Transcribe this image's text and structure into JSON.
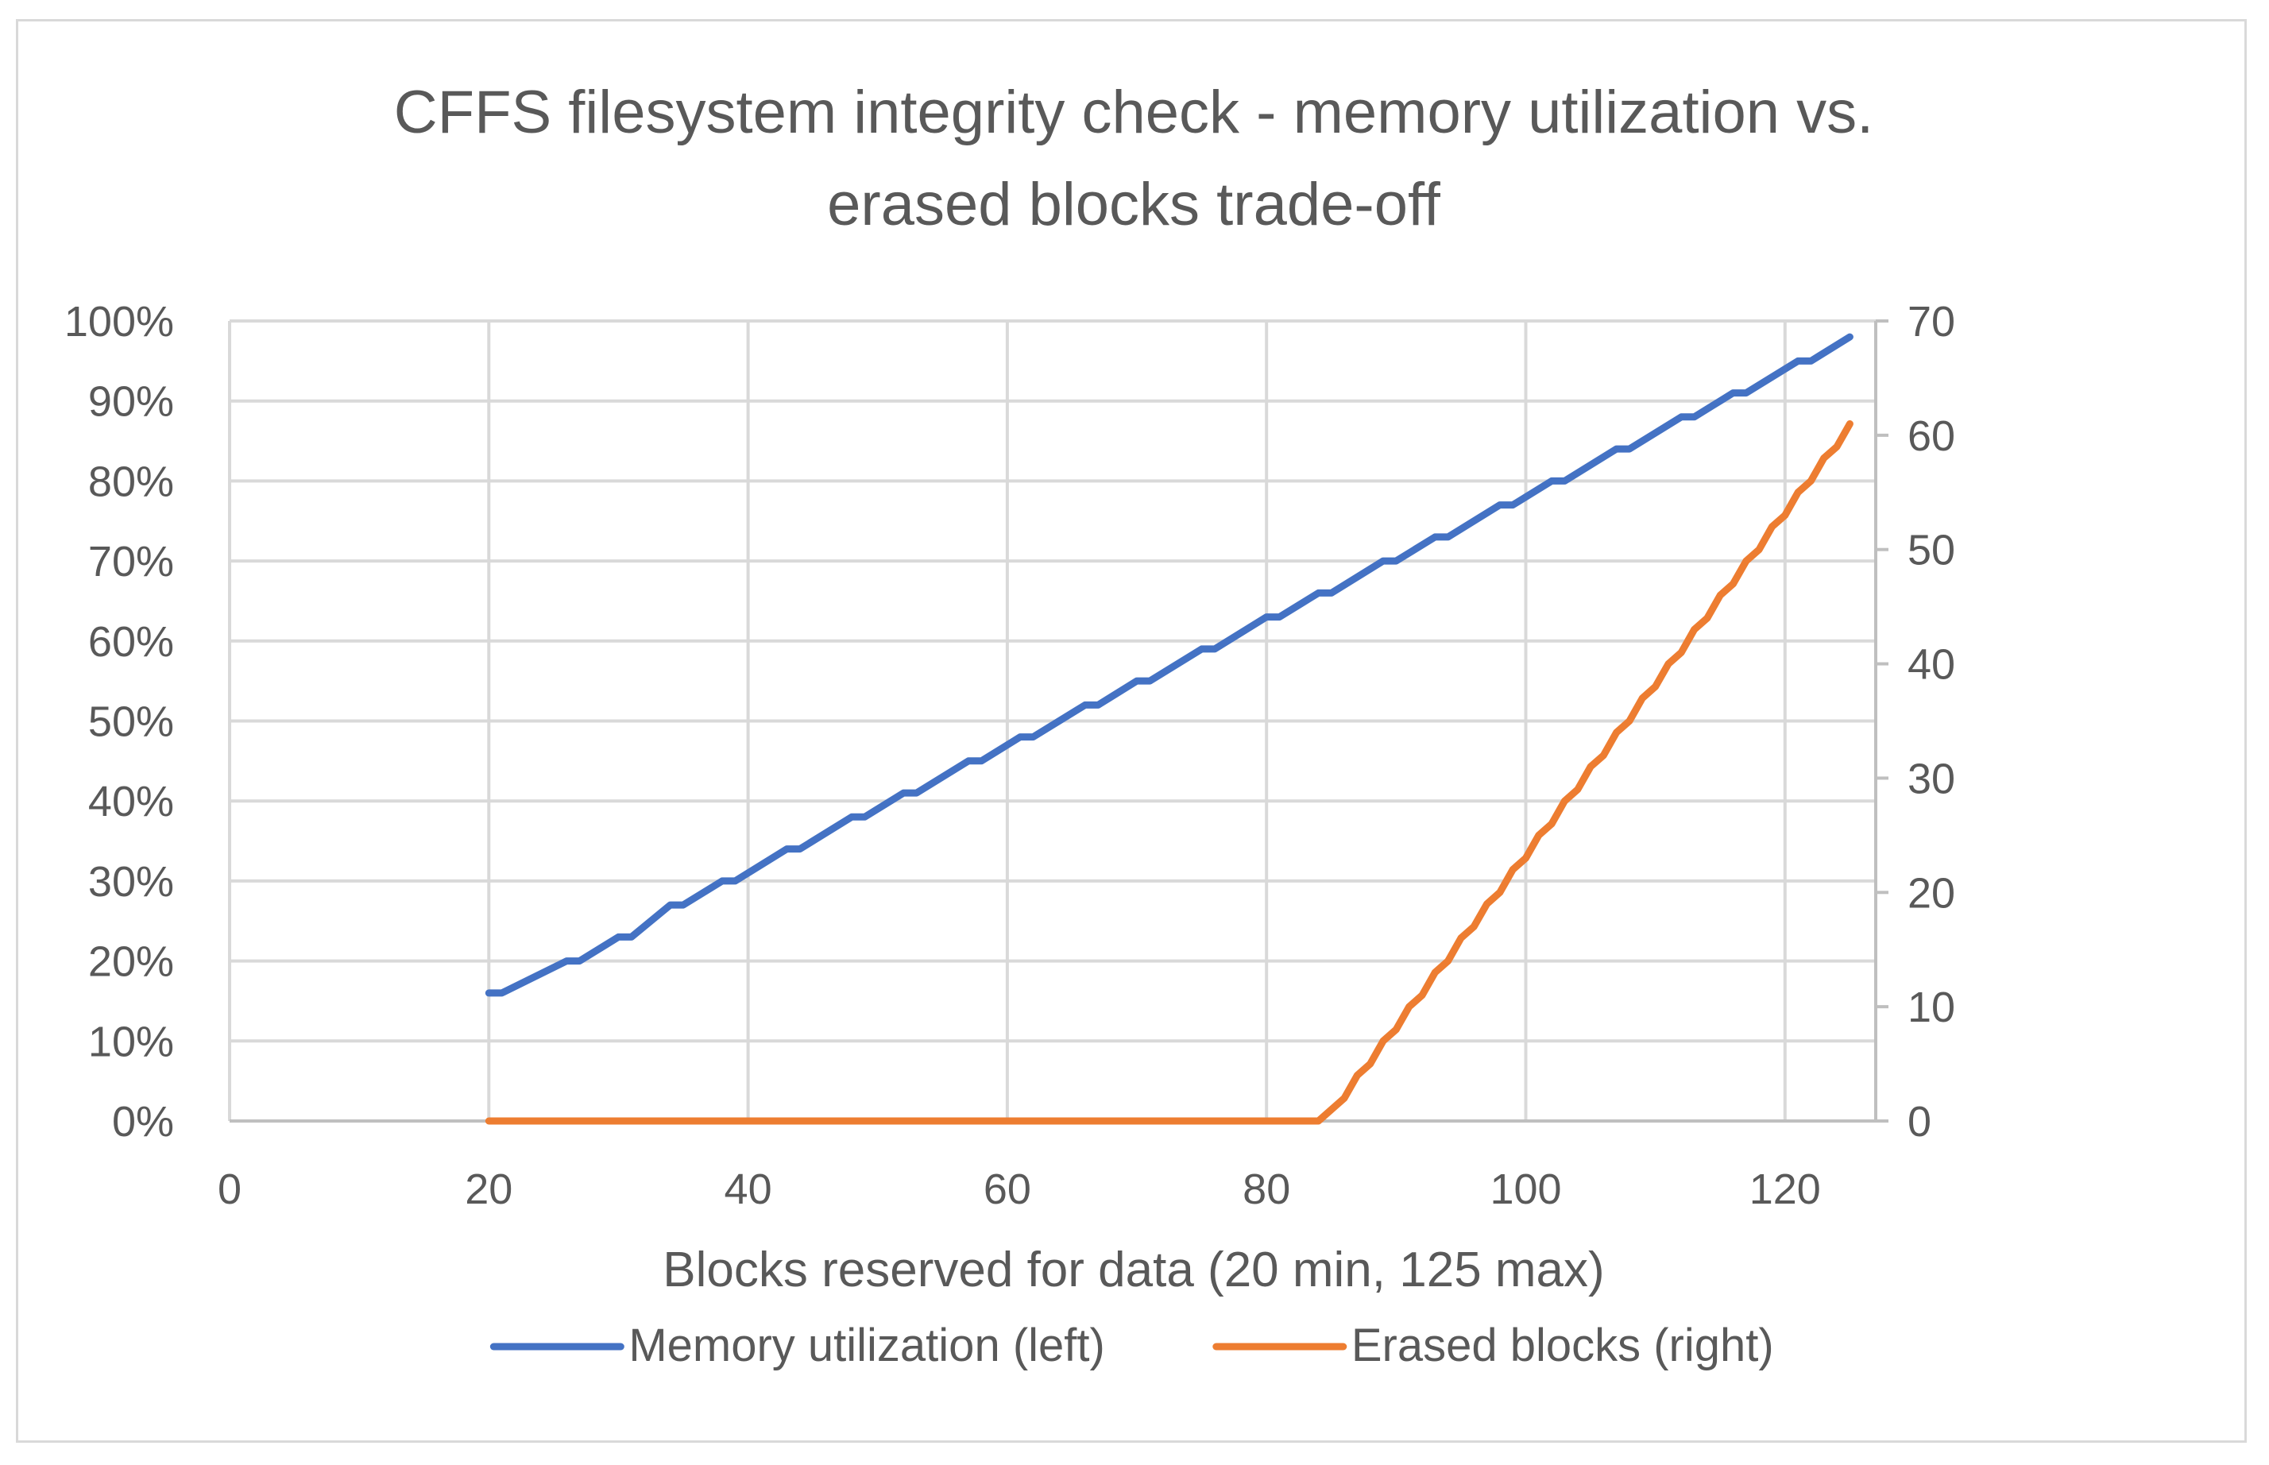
{
  "chart_data": {
    "type": "line",
    "title": "CFFS filesystem integrity check - memory utilization vs. erased blocks trade-off",
    "title_lines": [
      "CFFS filesystem integrity check - memory utilization vs.",
      "erased blocks trade-off"
    ],
    "xlabel": "Blocks reserved for data (20 min, 125 max)",
    "ylabel_left": "",
    "ylabel_right": "",
    "xlim": [
      0,
      127
    ],
    "ylim_left": [
      0,
      100
    ],
    "ylim_right": [
      0,
      70
    ],
    "x_ticks": [
      0,
      20,
      40,
      60,
      80,
      100,
      120
    ],
    "x_tick_labels": [
      "0",
      "20",
      "40",
      "60",
      "80",
      "100",
      "120"
    ],
    "y_left_ticks": [
      0,
      10,
      20,
      30,
      40,
      50,
      60,
      70,
      80,
      90,
      100
    ],
    "y_left_tick_labels": [
      "0%",
      "10%",
      "20%",
      "30%",
      "40%",
      "50%",
      "60%",
      "70%",
      "80%",
      "90%",
      "100%"
    ],
    "y_right_ticks": [
      0,
      10,
      20,
      30,
      40,
      50,
      60,
      70
    ],
    "y_right_tick_labels": [
      "0",
      "10",
      "20",
      "30",
      "40",
      "50",
      "60",
      "70"
    ],
    "grid": true,
    "legend_position": "bottom",
    "series": [
      {
        "name": "Memory utilization (left)",
        "axis": "left",
        "color": "#4472C4",
        "x": [
          20,
          21,
          26,
          27,
          30,
          31,
          34,
          35,
          38,
          39,
          43,
          44,
          48,
          49,
          52,
          53,
          57,
          58,
          61,
          62,
          66,
          67,
          70,
          71,
          75,
          76,
          80,
          81,
          84,
          85,
          89,
          90,
          93,
          94,
          98,
          99,
          102,
          103,
          107,
          108,
          112,
          113,
          116,
          117,
          121,
          122,
          125
        ],
        "y": [
          16,
          16,
          20,
          20,
          23,
          23,
          27,
          27,
          30,
          30,
          34,
          34,
          38,
          38,
          41,
          41,
          45,
          45,
          48,
          48,
          52,
          52,
          55,
          55,
          59,
          59,
          63,
          63,
          66,
          66,
          70,
          70,
          73,
          73,
          77,
          77,
          80,
          80,
          84,
          84,
          88,
          88,
          91,
          91,
          95,
          95,
          98
        ]
      },
      {
        "name": "Erased blocks (right)",
        "axis": "right",
        "color": "#ED7D31",
        "x": [
          20,
          84,
          85,
          86,
          87,
          88,
          89,
          90,
          91,
          92,
          93,
          94,
          95,
          96,
          97,
          98,
          99,
          100,
          101,
          102,
          103,
          104,
          105,
          106,
          107,
          108,
          109,
          110,
          111,
          112,
          113,
          114,
          115,
          116,
          117,
          118,
          119,
          120,
          121,
          122,
          123,
          124,
          125
        ],
        "y": [
          0,
          0,
          1,
          2,
          4,
          5,
          7,
          8,
          10,
          11,
          13,
          14,
          16,
          17,
          19,
          20,
          22,
          23,
          25,
          26,
          28,
          29,
          31,
          32,
          34,
          35,
          37,
          38,
          40,
          41,
          43,
          44,
          46,
          47,
          49,
          50,
          52,
          53,
          55,
          56,
          58,
          59,
          61
        ]
      }
    ]
  }
}
